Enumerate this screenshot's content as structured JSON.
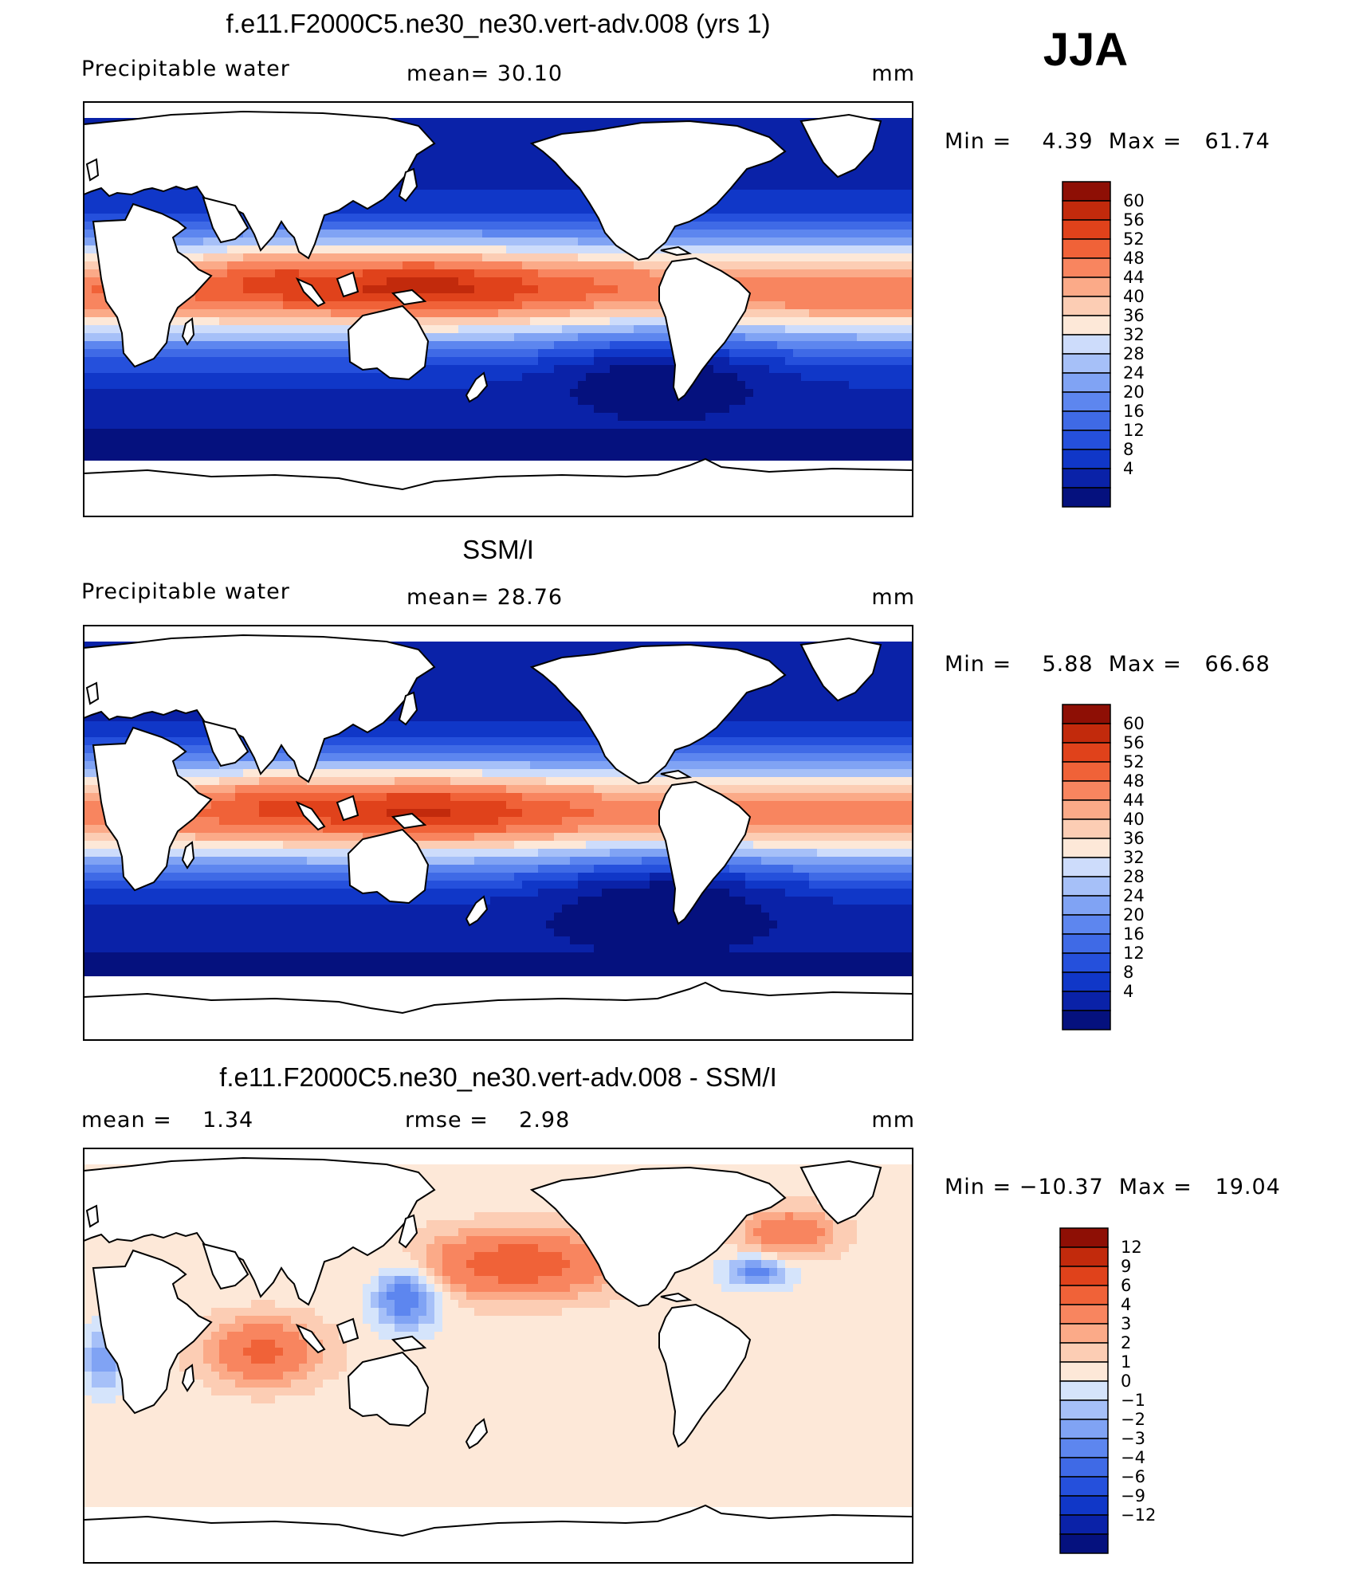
{
  "season": "JJA",
  "panels": [
    {
      "title": "f.e11.F2000C5.ne30_ne30.vert-adv.008 (yrs 1)",
      "left_label": "Precipitable water",
      "center_label": "mean=   30.10",
      "right_label": "mm",
      "minmax": "Min =    4.39  Max =   61.74",
      "colorbar_labels": [
        "60",
        "56",
        "52",
        "48",
        "44",
        "40",
        "36",
        "32",
        "28",
        "24",
        "20",
        "16",
        "12",
        "8",
        "4"
      ]
    },
    {
      "title": "SSM/I",
      "left_label": "Precipitable water",
      "center_label": "mean=   28.76",
      "right_label": "mm",
      "minmax": "Min =    5.88  Max =   66.68",
      "colorbar_labels": [
        "60",
        "56",
        "52",
        "48",
        "44",
        "40",
        "36",
        "32",
        "28",
        "24",
        "20",
        "16",
        "12",
        "8",
        "4"
      ]
    },
    {
      "title": "f.e11.F2000C5.ne30_ne30.vert-adv.008 - SSM/I",
      "left_label": "mean =    1.34",
      "center_label": "rmse =    2.98",
      "right_label": "mm",
      "minmax": "Min = −10.37  Max =   19.04",
      "colorbar_labels": [
        "12",
        "9",
        "6",
        "4",
        "3",
        "2",
        "1",
        "0",
        "−1",
        "−2",
        "−3",
        "−4",
        "−6",
        "−9",
        "−12"
      ]
    }
  ],
  "colors": {
    "field_palette": [
      "#05117e",
      "#0a22a8",
      "#1037c8",
      "#2550dc",
      "#3f6ae6",
      "#5d86ef",
      "#80a3f4",
      "#a6c0f8",
      "#cddcfb",
      "#fde8d8",
      "#fccdb4",
      "#fbaa88",
      "#f8855f",
      "#f06238",
      "#e0421b",
      "#c22a0c",
      "#8e0f05"
    ],
    "diff_palette": [
      "#05117e",
      "#0a22a8",
      "#1037c8",
      "#2550dc",
      "#3f6ae6",
      "#5d86ef",
      "#80a3f4",
      "#a6c0f8",
      "#d5e4fb",
      "#fde8d8",
      "#fccdb4",
      "#fbaa88",
      "#f8855f",
      "#f06238",
      "#e0421b",
      "#c22a0c",
      "#8e0f05"
    ]
  }
}
